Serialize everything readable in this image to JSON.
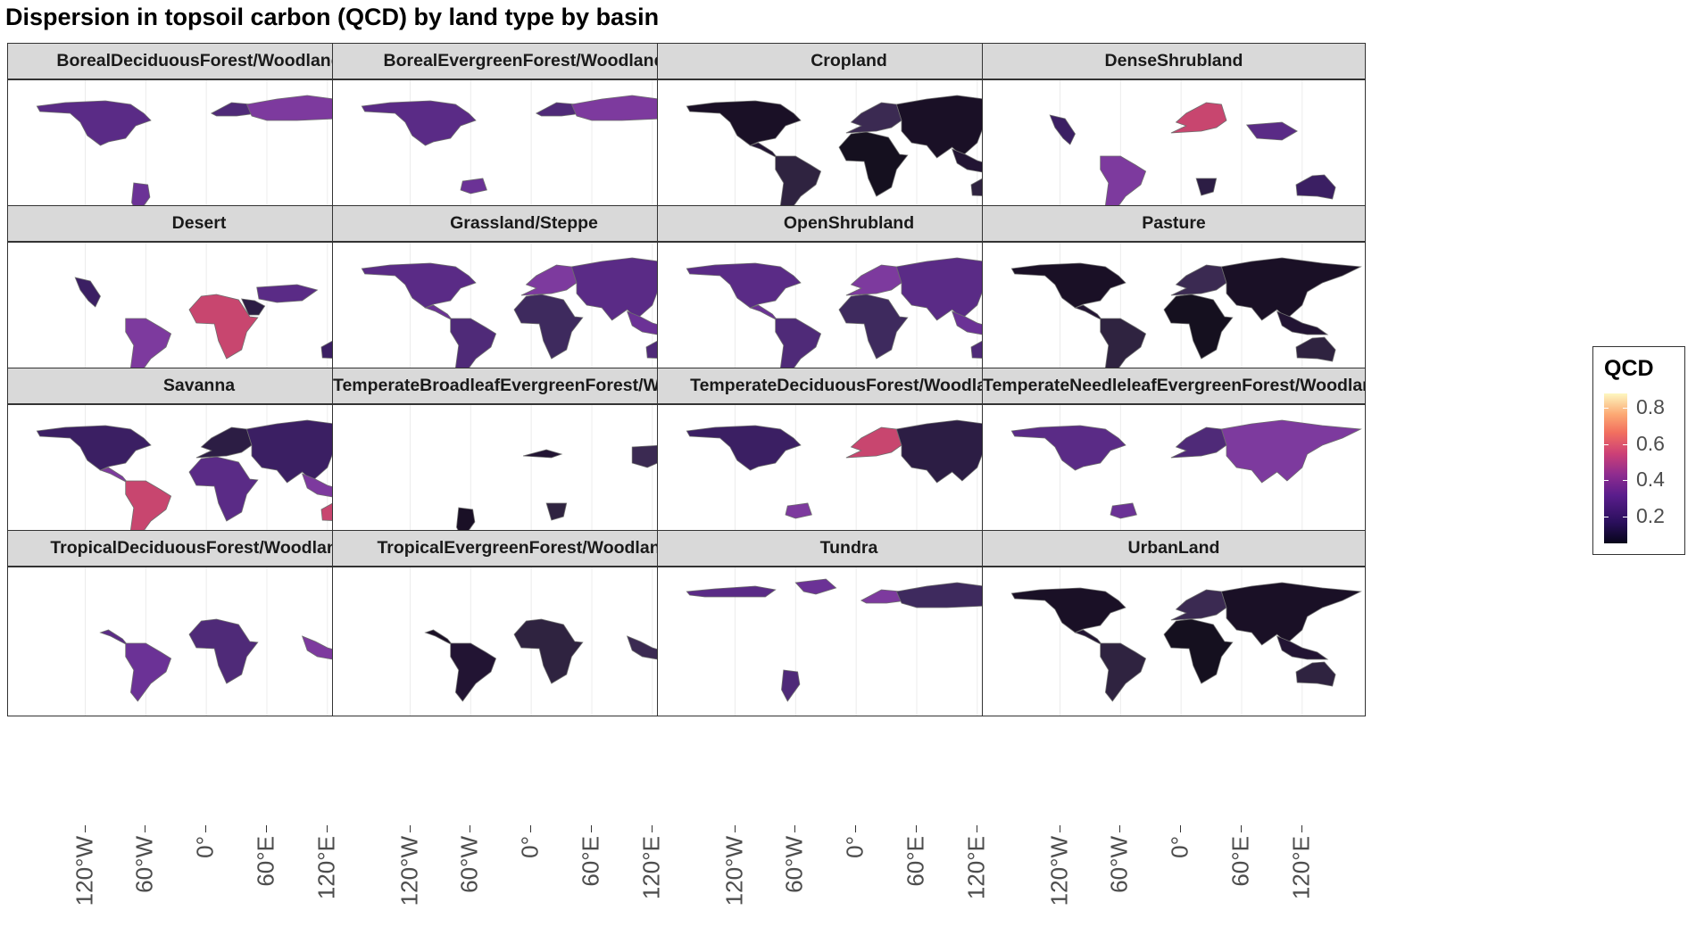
{
  "title": "Dispersion in topsoil carbon (QCD) by land type by basin",
  "legend": {
    "title": "QCD",
    "ticks": [
      {
        "value": 0.8,
        "label": "0.8"
      },
      {
        "value": 0.6,
        "label": "0.6"
      },
      {
        "value": 0.4,
        "label": "0.4"
      },
      {
        "value": 0.2,
        "label": "0.2"
      }
    ],
    "colors": [
      "#07051a",
      "#2a0f5c",
      "#5a1d8c",
      "#8f2c8f",
      "#cd4076",
      "#f2705f",
      "#fca873",
      "#fdf7c0"
    ]
  },
  "x_axis": {
    "ticks": [
      {
        "lon": -120,
        "label": "120°W"
      },
      {
        "lon": -60,
        "label": "60°W"
      },
      {
        "lon": 0,
        "label": "0°"
      },
      {
        "lon": 60,
        "label": "60°E"
      },
      {
        "lon": 120,
        "label": "120°E"
      }
    ]
  },
  "facets": [
    {
      "label": "BorealDeciduousForest/Woodland",
      "regions": [
        "NA",
        "SA_south",
        "EU_north",
        "ASIA_north",
        "AUS_east_tip"
      ],
      "dominant": "purple"
    },
    {
      "label": "BorealEvergreenForest/Woodland",
      "regions": [
        "NA",
        "SA_blob",
        "EU_north",
        "ASIA_north"
      ],
      "dominant": "purple"
    },
    {
      "label": "Cropland",
      "regions": [
        "NA",
        "CAM",
        "SA",
        "EUR",
        "AFR",
        "ASIA",
        "SEA",
        "AUS"
      ],
      "dominant": "dark"
    },
    {
      "label": "DenseShrubland",
      "regions": [
        "NA_west",
        "SA",
        "EUR",
        "AFR_south",
        "ASIA_part",
        "AUS"
      ],
      "dominant": "mixed"
    },
    {
      "label": "Desert",
      "regions": [
        "NA_west",
        "SA",
        "AFR",
        "ME",
        "ASIA_central",
        "AUS"
      ],
      "dominant": "mixed"
    },
    {
      "label": "Grassland/Steppe",
      "regions": [
        "NA",
        "CAM",
        "SA",
        "EUR",
        "AFR",
        "ASIA",
        "SEA",
        "AUS"
      ],
      "dominant": "purple"
    },
    {
      "label": "OpenShrubland",
      "regions": [
        "NA",
        "CAM",
        "SA",
        "EUR",
        "AFR",
        "ASIA",
        "SEA",
        "AUS"
      ],
      "dominant": "purple"
    },
    {
      "label": "Pasture",
      "regions": [
        "NA",
        "CAM",
        "SA",
        "EUR",
        "AFR",
        "ASIA",
        "SEA",
        "AUS"
      ],
      "dominant": "dark"
    },
    {
      "label": "Savanna",
      "regions": [
        "NA",
        "CAM",
        "SA",
        "EUR",
        "AFR",
        "ASIA",
        "SEA",
        "AUS"
      ],
      "dominant": "mixed"
    },
    {
      "label": "TemperateBroadleafEvergreenForest/Woodland",
      "regions": [
        "SA_south",
        "EU_south",
        "AFR_south",
        "ASIA_east",
        "AUS_east"
      ],
      "dominant": "dark"
    },
    {
      "label": "TemperateDeciduousForest/Woodland",
      "regions": [
        "NA",
        "SA_blob",
        "EUR",
        "ASIA"
      ],
      "dominant": "mixed"
    },
    {
      "label": "TemperateNeedleleafEvergreenForest/Woodland",
      "regions": [
        "NA",
        "SA_blob",
        "EUR",
        "ASIA"
      ],
      "dominant": "purple"
    },
    {
      "label": "TropicalDeciduousForest/Woodland",
      "regions": [
        "CAM",
        "SA",
        "AFR",
        "SEA"
      ],
      "dominant": "purple"
    },
    {
      "label": "TropicalEvergreenForest/Woodland",
      "regions": [
        "CAM",
        "SA",
        "AFR",
        "SEA",
        "AUS_north"
      ],
      "dominant": "dark"
    },
    {
      "label": "Tundra",
      "regions": [
        "NA_north",
        "GRL",
        "SA_south",
        "EU_north",
        "ASIA_north"
      ],
      "dominant": "purple"
    },
    {
      "label": "UrbanLand",
      "regions": [
        "NA",
        "CAM",
        "SA",
        "EUR",
        "AFR",
        "ASIA",
        "SEA",
        "AUS"
      ],
      "dominant": "dark"
    }
  ]
}
